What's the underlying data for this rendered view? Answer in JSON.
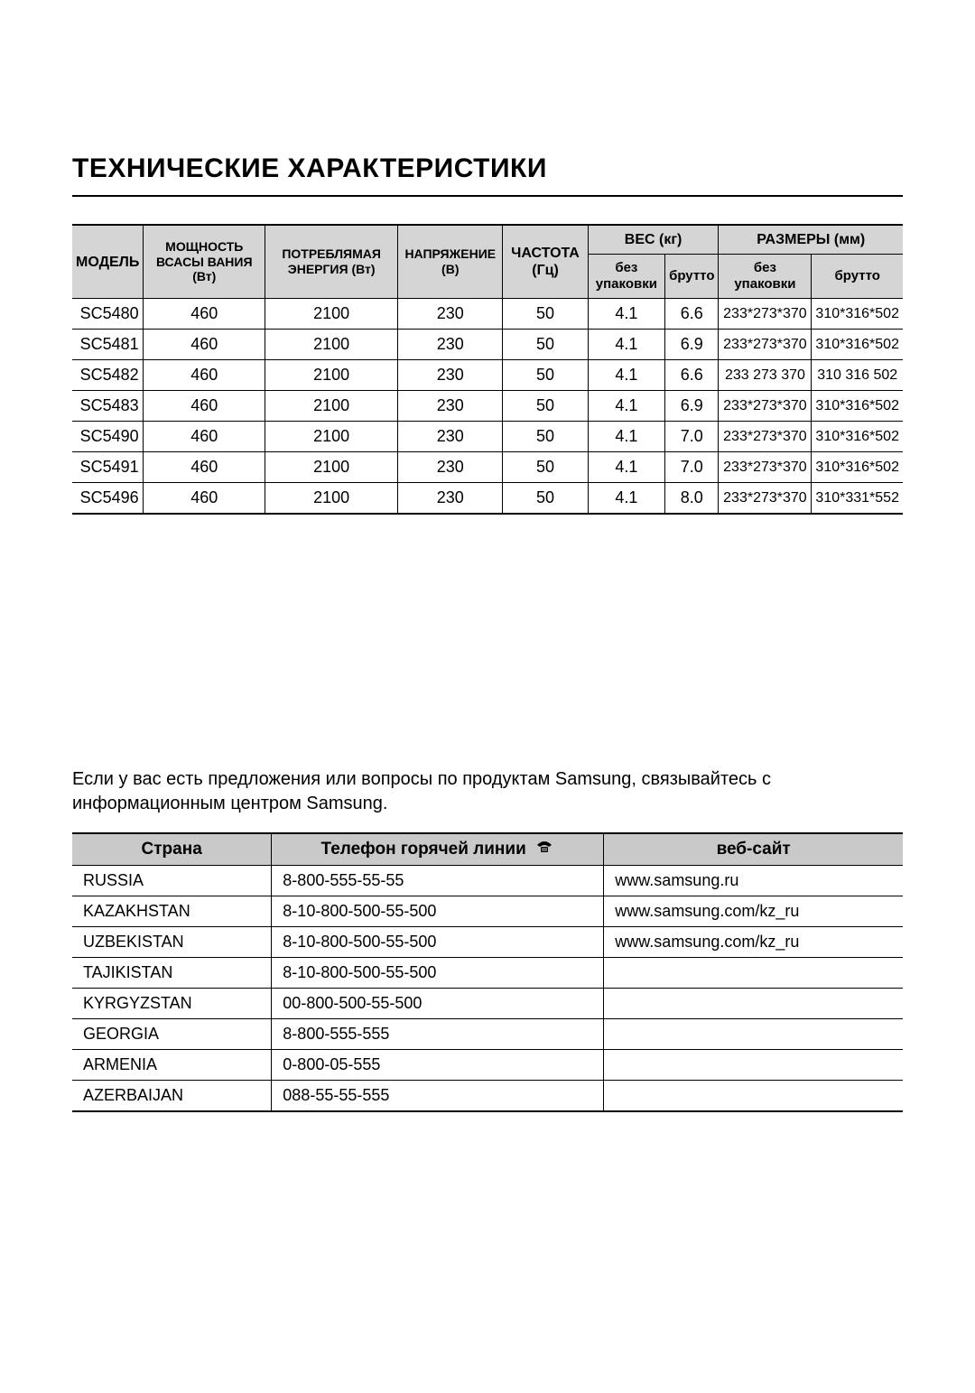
{
  "title": "ТЕХНИЧЕСКИЕ ХАРАКТЕРИСТИКИ",
  "specs_table": {
    "type": "table",
    "header_bg": "#d5d5d5",
    "border_color": "#000000",
    "headers": {
      "model": "МОДЕЛЬ",
      "suction_power": "МОЩНОСТЬ ВСАСЫ ВАНИЯ (Вт)",
      "power_consumption": "ПОТРЕБЛЯМАЯ ЭНЕРГИЯ (Вт)",
      "voltage": "НАПРЯЖЕНИЕ (В)",
      "frequency": "ЧАСТОТА (Гц)",
      "weight": "ВЕС (кг)",
      "dimensions": "РАЗМЕРЫ (мм)",
      "without_packaging_w": "без упаковки",
      "gross_w": "брутто",
      "without_packaging_d": "без упаковки",
      "gross_d": "брутто"
    },
    "rows": [
      {
        "model": "SC5480",
        "suction": "460",
        "power": "2100",
        "voltage": "230",
        "freq": "50",
        "w_net": "4.1",
        "w_gross": "6.6",
        "d_net": "233*273*370",
        "d_gross": "310*316*502"
      },
      {
        "model": "SC5481",
        "suction": "460",
        "power": "2100",
        "voltage": "230",
        "freq": "50",
        "w_net": "4.1",
        "w_gross": "6.9",
        "d_net": "233*273*370",
        "d_gross": "310*316*502"
      },
      {
        "model": "SC5482",
        "suction": "460",
        "power": "2100",
        "voltage": "230",
        "freq": "50",
        "w_net": "4.1",
        "w_gross": "6.6",
        "d_net": "233 273 370",
        "d_gross": "310 316 502"
      },
      {
        "model": "SC5483",
        "suction": "460",
        "power": "2100",
        "voltage": "230",
        "freq": "50",
        "w_net": "4.1",
        "w_gross": "6.9",
        "d_net": "233*273*370",
        "d_gross": "310*316*502"
      },
      {
        "model": "SC5490",
        "suction": "460",
        "power": "2100",
        "voltage": "230",
        "freq": "50",
        "w_net": "4.1",
        "w_gross": "7.0",
        "d_net": "233*273*370",
        "d_gross": "310*316*502"
      },
      {
        "model": "SC5491",
        "suction": "460",
        "power": "2100",
        "voltage": "230",
        "freq": "50",
        "w_net": "4.1",
        "w_gross": "7.0",
        "d_net": "233*273*370",
        "d_gross": "310*316*502"
      },
      {
        "model": "SC5496",
        "suction": "460",
        "power": "2100",
        "voltage": "230",
        "freq": "50",
        "w_net": "4.1",
        "w_gross": "8.0",
        "d_net": "233*273*370",
        "d_gross": "310*331*552"
      }
    ]
  },
  "contact_intro": "Если у вас есть предложения или вопросы по продуктам Samsung, связывайтесь с информационным центром Samsung.",
  "contact_table": {
    "type": "table",
    "header_bg": "#c9c9c9",
    "headers": {
      "country": "Страна",
      "phone": "Телефон горячей линии",
      "website": "веб-сайт"
    },
    "rows": [
      {
        "country": "RUSSIA",
        "phone": "8-800-555-55-55",
        "website": "www.samsung.ru"
      },
      {
        "country": "KAZAKHSTAN",
        "phone": "8-10-800-500-55-500",
        "website": "www.samsung.com/kz_ru"
      },
      {
        "country": "UZBEKISTAN",
        "phone": "8-10-800-500-55-500",
        "website": "www.samsung.com/kz_ru"
      },
      {
        "country": "TAJIKISTAN",
        "phone": "8-10-800-500-55-500",
        "website": ""
      },
      {
        "country": "KYRGYZSTAN",
        "phone": "00-800-500-55-500",
        "website": ""
      },
      {
        "country": "GEORGIA",
        "phone": "8-800-555-555",
        "website": ""
      },
      {
        "country": "ARMENIA",
        "phone": "0-800-05-555",
        "website": ""
      },
      {
        "country": "AZERBAIJAN",
        "phone": "088-55-55-555",
        "website": ""
      }
    ]
  }
}
